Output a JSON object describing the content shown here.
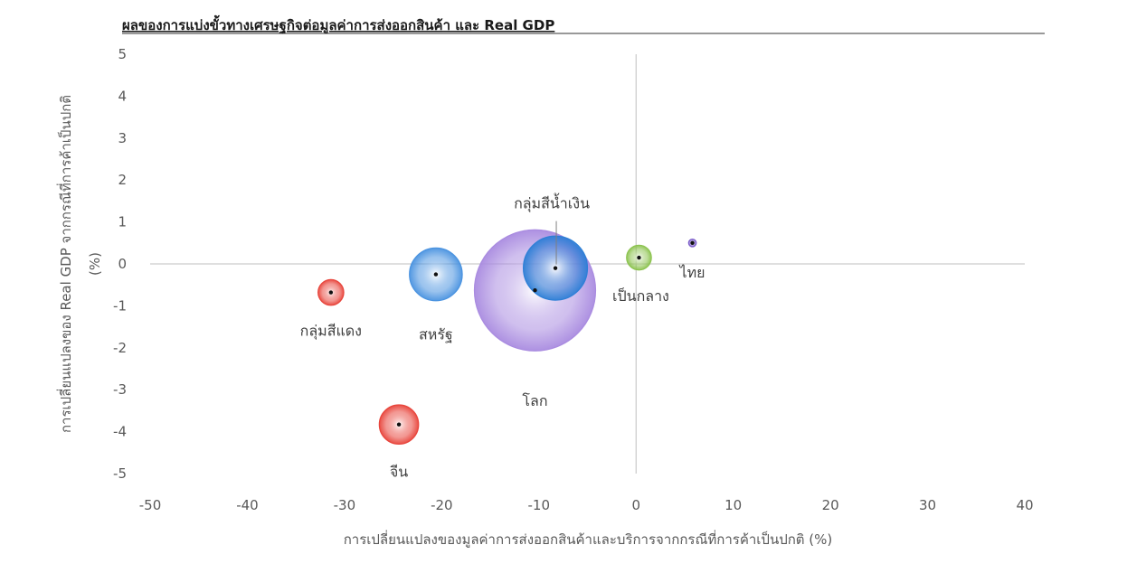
{
  "chart_data": {
    "type": "scatter",
    "title": "ผลของการแบ่งขั้วทางเศรษฐกิจต่อมูลค่าการส่งออกสินค้า และ Real GDP",
    "xlabel": "การเปลี่ยนแปลงของมูลค่าการส่งออกสินค้าและบริการจากกรณีที่การค้าเป็นปกติ (%)",
    "ylabel_line1": "การเปลี่ยนแปลงของ Real GDP จากกรณีที่การค้าเป็นปกติ",
    "ylabel_line2": "(%)",
    "xlim": [
      -50,
      40
    ],
    "ylim": [
      -5,
      5
    ],
    "x_ticks": [
      -50,
      -40,
      -30,
      -20,
      -10,
      0,
      10,
      20,
      30,
      40
    ],
    "y_ticks": [
      5,
      4,
      3,
      2,
      1,
      0,
      -1,
      -2,
      -3,
      -4,
      -5
    ],
    "grid": false,
    "points": [
      {
        "label": "โลก",
        "x": -10.4,
        "y": -0.63,
        "size": 100,
        "color": "#a98be0"
      },
      {
        "label": "กลุ่มสีน้ำเงิน",
        "x": -8.3,
        "y": -0.1,
        "size": 28,
        "color": "#2e7fd6"
      },
      {
        "label": "สหรัฐ",
        "x": -20.6,
        "y": -0.25,
        "size": 19,
        "color": "#4a93e0"
      },
      {
        "label": "กลุ่มสีแดง",
        "x": -31.4,
        "y": -0.68,
        "size": 4.5,
        "color": "#e8453c"
      },
      {
        "label": "จีน",
        "x": -24.4,
        "y": -3.83,
        "size": 10.5,
        "color": "#e8453c"
      },
      {
        "label": "เป็นกลาง",
        "x": 0.3,
        "y": 0.15,
        "size": 4.2,
        "color": "#8cc34f"
      },
      {
        "label": "ไทย",
        "x": 5.8,
        "y": 0.5,
        "size": 0.4,
        "color": "#7a5bc9"
      }
    ]
  }
}
